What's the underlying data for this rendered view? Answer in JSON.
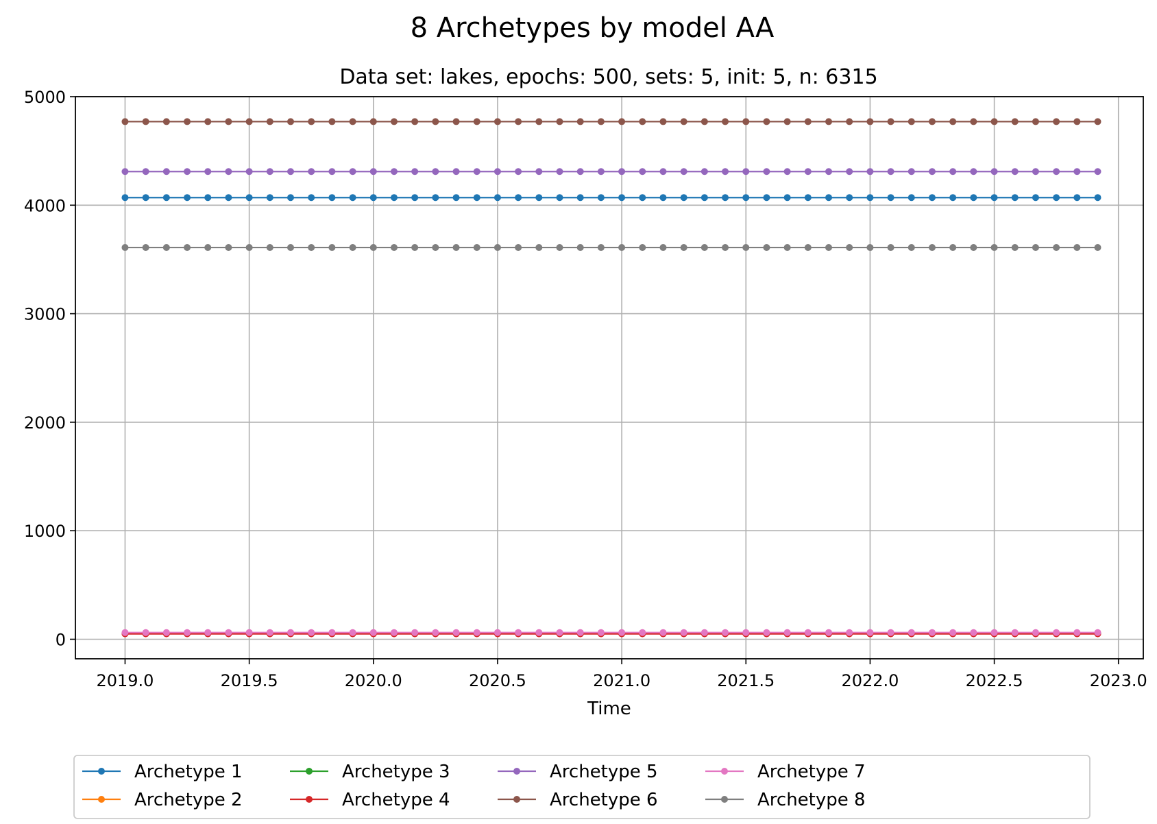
{
  "chart_data": {
    "type": "line",
    "title": "8 Archetypes by model AA",
    "subtitle": "Data set: lakes, epochs: 500, sets: 5, init: 5, n: 6315",
    "xlabel": "Time",
    "ylabel": "",
    "xlim": [
      2018.8,
      2023.1
    ],
    "ylim": [
      -180,
      5000
    ],
    "xticks": [
      "2019.0",
      "2019.5",
      "2020.0",
      "2020.5",
      "2021.0",
      "2021.5",
      "2022.0",
      "2022.5",
      "2023.0"
    ],
    "yticks": [
      "0",
      "1000",
      "2000",
      "3000",
      "4000",
      "5000"
    ],
    "grid": true,
    "legend_position": "bottom",
    "x_start": 2019.0,
    "x_step": 0.08333,
    "n_points": 48,
    "series": [
      {
        "name": "Archetype 1",
        "color": "#1f77b4",
        "value": 4070
      },
      {
        "name": "Archetype 2",
        "color": "#ff7f0e",
        "value": 55
      },
      {
        "name": "Archetype 3",
        "color": "#2ca02c",
        "value": 55
      },
      {
        "name": "Archetype 4",
        "color": "#d62728",
        "value": 50
      },
      {
        "name": "Archetype 5",
        "color": "#9467bd",
        "value": 4310
      },
      {
        "name": "Archetype 6",
        "color": "#8c564b",
        "value": 4770
      },
      {
        "name": "Archetype 7",
        "color": "#e377c2",
        "value": 62
      },
      {
        "name": "Archetype 8",
        "color": "#7f7f7f",
        "value": 3610
      }
    ]
  }
}
